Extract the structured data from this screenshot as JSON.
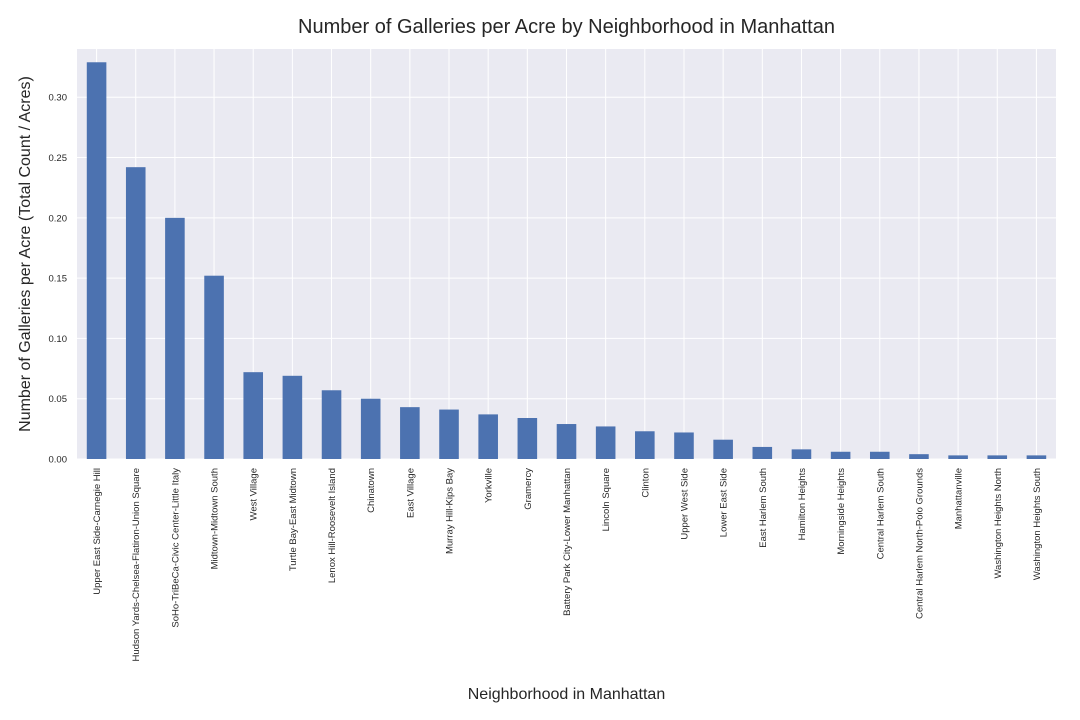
{
  "chart_data": {
    "type": "bar",
    "title": "Number of Galleries per Acre by Neighborhood in Manhattan",
    "xlabel": "Neighborhood in Manhattan",
    "ylabel": "Number of Galleries per Acre (Total Count / Acres)",
    "ylim": [
      0,
      0.34
    ],
    "yticks": [
      0.0,
      0.05,
      0.1,
      0.15,
      0.2,
      0.25,
      0.3
    ],
    "ytick_labels": [
      "0.00",
      "0.05",
      "0.10",
      "0.15",
      "0.20",
      "0.25",
      "0.30"
    ],
    "grid": true,
    "bar_color": "#4c72b0",
    "background_color": "#eaeaf2",
    "categories": [
      "Upper East Side-Carnegie Hill",
      "Hudson Yards-Chelsea-Flatiron-Union Square",
      "SoHo-TriBeCa-Civic Center-Little Italy",
      "Midtown-Midtown South",
      "West Village",
      "Turtle Bay-East Midtown",
      "Lenox Hill-Roosevelt Island",
      "Chinatown",
      "East Village",
      "Murray Hill-Kips Bay",
      "Yorkville",
      "Gramercy",
      "Battery Park City-Lower Manhattan",
      "Lincoln Square",
      "Clinton",
      "Upper West Side",
      "Lower East Side",
      "East Harlem South",
      "Hamilton Heights",
      "Morningside Heights",
      "Central Harlem South",
      "Central Harlem North-Polo Grounds",
      "Manhattanville",
      "Washington Heights North",
      "Washington Heights South"
    ],
    "values": [
      0.329,
      0.242,
      0.2,
      0.152,
      0.072,
      0.069,
      0.057,
      0.05,
      0.043,
      0.041,
      0.037,
      0.034,
      0.029,
      0.027,
      0.023,
      0.022,
      0.016,
      0.01,
      0.008,
      0.006,
      0.006,
      0.004,
      0.003,
      0.003,
      0.003
    ]
  }
}
